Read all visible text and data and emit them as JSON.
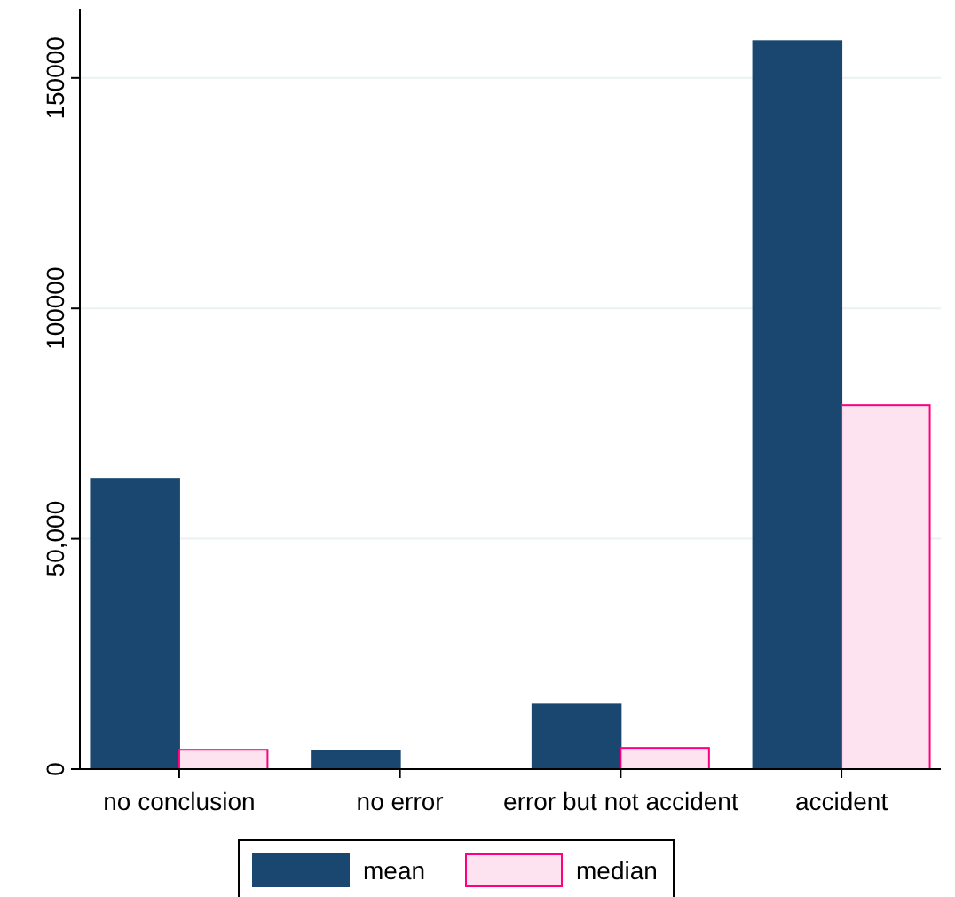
{
  "chart_data": {
    "type": "bar",
    "categories": [
      "no conclusion",
      "no error",
      "error but not accident",
      "accident"
    ],
    "series": [
      {
        "name": "mean",
        "color": "#1a476f",
        "values": [
          63000,
          4000,
          14000,
          158000
        ]
      },
      {
        "name": "median",
        "color": "#fde3ef",
        "values": [
          4200,
          0,
          4600,
          79000
        ]
      }
    ],
    "ylim": [
      0,
      165000
    ],
    "yticks": [
      0,
      {
        "value": 50000,
        "label": "50,000"
      },
      {
        "value": 100000,
        "label": "100000"
      },
      {
        "value": 150000,
        "label": "150000"
      }
    ],
    "grid": "y",
    "legend": "bottom"
  }
}
